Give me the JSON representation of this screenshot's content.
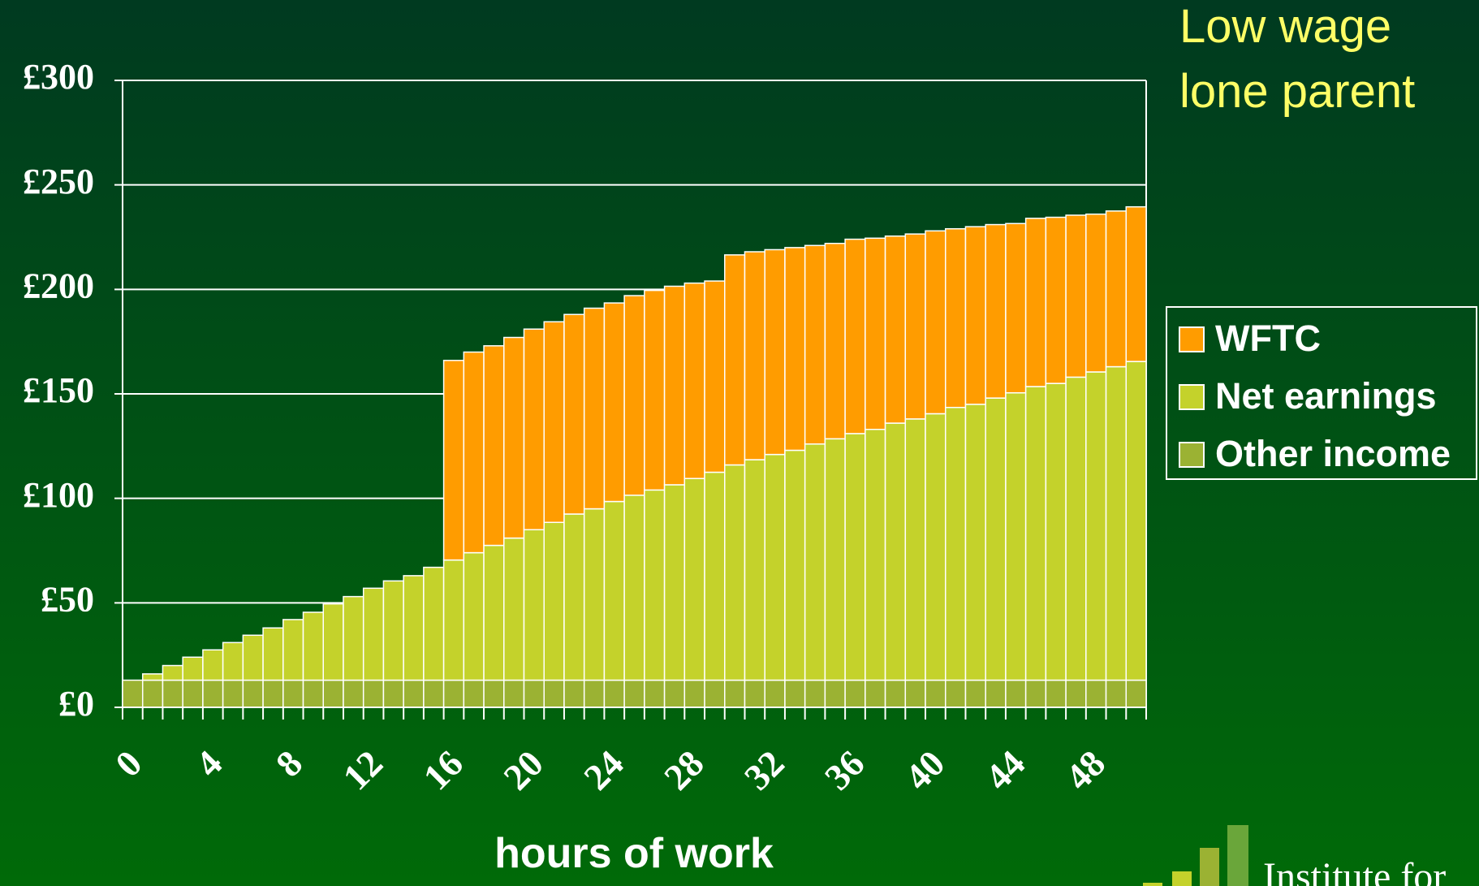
{
  "chart_data": {
    "type": "stacked_bar",
    "title": "Low wage lone parent",
    "x_label": "hours of work",
    "logo_text": "Institute for",
    "categories": [
      "0",
      null,
      null,
      null,
      "4",
      null,
      null,
      null,
      "8",
      null,
      null,
      null,
      "12",
      null,
      null,
      null,
      "16",
      null,
      null,
      null,
      "20",
      null,
      null,
      null,
      "24",
      null,
      null,
      null,
      "28",
      null,
      null,
      null,
      "32",
      null,
      null,
      null,
      "36",
      null,
      null,
      null,
      "40",
      null,
      null,
      null,
      "44",
      null,
      null,
      null,
      "48",
      null,
      null
    ],
    "series": [
      {
        "name": "Other income",
        "color": "#9bb233",
        "values": [
          13,
          13,
          13,
          13,
          13,
          13,
          13,
          13,
          13,
          13,
          13,
          13,
          13,
          13,
          13,
          13,
          13,
          13,
          13,
          13,
          13,
          13,
          13,
          13,
          13,
          13,
          13,
          13,
          13,
          13,
          13,
          13,
          13,
          13,
          13,
          13,
          13,
          13,
          13,
          13,
          13,
          13,
          13,
          13,
          13,
          13,
          13,
          13,
          13,
          13,
          13
        ]
      },
      {
        "name": "Net earnings",
        "color": "#c4d22b",
        "values": [
          0,
          3,
          7,
          11,
          14.5,
          18,
          21.5,
          25,
          29,
          32.5,
          36.5,
          40,
          44,
          47.5,
          50,
          54,
          57.5,
          61,
          64.5,
          68,
          72,
          75.5,
          79.5,
          82,
          85.5,
          88.5,
          91,
          93.5,
          96.5,
          99.5,
          103,
          105.5,
          108,
          110,
          113,
          115.5,
          118,
          120,
          123,
          125,
          127.5,
          130.5,
          132,
          135,
          137.5,
          140.5,
          142,
          145,
          147.5,
          150,
          152.5
        ]
      },
      {
        "name": "WFTC",
        "color": "#ff9c00",
        "values": [
          0,
          0,
          0,
          0,
          0,
          0,
          0,
          0,
          0,
          0,
          0,
          0,
          0,
          0,
          0,
          0,
          95.5,
          96,
          95.5,
          96,
          96,
          96,
          95.5,
          96,
          95,
          95.5,
          95.5,
          95,
          93.5,
          91.5,
          100.5,
          99.5,
          98,
          97,
          95,
          93.5,
          93,
          91.5,
          89.5,
          88.5,
          87.5,
          85.5,
          85,
          83,
          81,
          80.5,
          79.5,
          77.5,
          75.5,
          74.5,
          74
        ]
      }
    ],
    "ylim": [
      0,
      300
    ],
    "yticks": [
      {
        "value": 0,
        "label": "£0"
      },
      {
        "value": 50,
        "label": "£50"
      },
      {
        "value": 100,
        "label": "£100"
      },
      {
        "value": 150,
        "label": "£150"
      },
      {
        "value": 200,
        "label": "£200"
      },
      {
        "value": 250,
        "label": "£250"
      },
      {
        "value": 300,
        "label": "£300"
      }
    ],
    "grid": true,
    "legend": "right"
  }
}
